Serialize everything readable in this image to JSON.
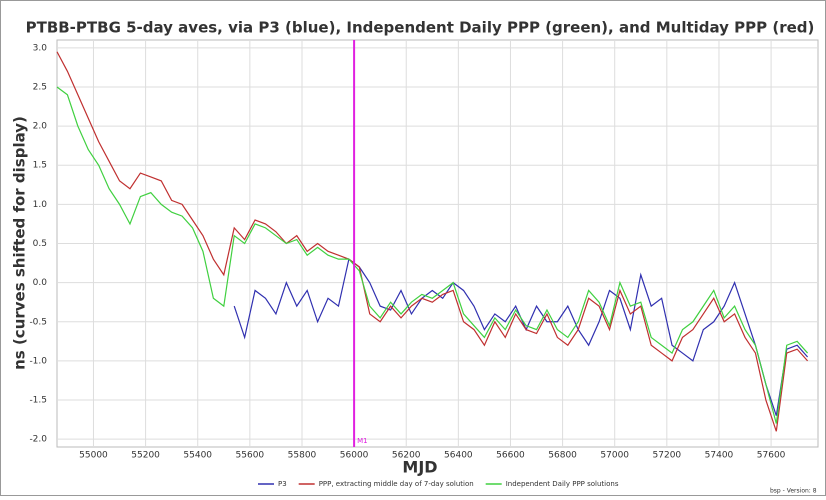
{
  "chart_data": {
    "type": "line",
    "title": "PTBB-PTBG 5-day aves, via P3 (blue), Independent Daily PPP (green), and Multiday PPP (red)",
    "x_label": "MJD",
    "y_label": "ns (curves shifted for display)",
    "footer": "bsp - Version: 8",
    "grid": true,
    "xlim": [
      54860,
      57780
    ],
    "ylim": [
      -2.1,
      3.1
    ],
    "xticks": [
      55000,
      55200,
      55400,
      55600,
      55800,
      56000,
      56200,
      56400,
      56600,
      56800,
      57000,
      57200,
      57400,
      57600
    ],
    "yticks": [
      {
        "value": 3,
        "label": "3.0"
      },
      2.5,
      {
        "value": 2,
        "label": "2.0"
      },
      1.5,
      {
        "value": 1,
        "label": "1.0"
      },
      0.5,
      {
        "value": 0,
        "label": "0.0"
      },
      -0.5,
      {
        "value": -1,
        "label": "-1.0"
      },
      -1.5,
      {
        "value": -2,
        "label": "-2.0"
      }
    ],
    "marker": {
      "x": 56000,
      "label": "M1",
      "color": "#e020e0"
    },
    "x": [
      54860,
      54900,
      54940,
      54980,
      55020,
      55060,
      55100,
      55140,
      55180,
      55220,
      55260,
      55300,
      55340,
      55380,
      55420,
      55460,
      55500,
      55540,
      55580,
      55620,
      55660,
      55700,
      55740,
      55780,
      55820,
      55860,
      55900,
      55940,
      55980,
      56020,
      56060,
      56100,
      56140,
      56180,
      56220,
      56260,
      56300,
      56340,
      56380,
      56420,
      56460,
      56500,
      56540,
      56580,
      56620,
      56660,
      56700,
      56740,
      56780,
      56820,
      56860,
      56900,
      56940,
      56980,
      57020,
      57060,
      57100,
      57140,
      57180,
      57220,
      57260,
      57300,
      57340,
      57380,
      57420,
      57460,
      57500,
      57540,
      57580,
      57620,
      57660,
      57700,
      57740
    ],
    "series": [
      {
        "name": "P3",
        "color": "#3030b0",
        "values": [
          null,
          null,
          null,
          null,
          null,
          null,
          null,
          null,
          null,
          null,
          null,
          null,
          null,
          null,
          null,
          null,
          null,
          -0.3,
          -0.7,
          -0.1,
          -0.2,
          -0.4,
          0.0,
          -0.3,
          -0.1,
          -0.5,
          -0.2,
          -0.3,
          0.3,
          0.2,
          0.0,
          -0.3,
          -0.35,
          -0.1,
          -0.4,
          -0.2,
          -0.1,
          -0.2,
          0.0,
          -0.1,
          -0.3,
          -0.6,
          -0.4,
          -0.5,
          -0.3,
          -0.6,
          -0.3,
          -0.5,
          -0.5,
          -0.3,
          -0.6,
          -0.8,
          -0.5,
          -0.1,
          -0.2,
          -0.6,
          0.1,
          -0.3,
          -0.2,
          -0.8,
          -0.9,
          -1.0,
          -0.6,
          -0.5,
          -0.3,
          0.0,
          -0.4,
          -0.8,
          -1.3,
          -1.7,
          -0.85,
          -0.8,
          -0.95
        ]
      },
      {
        "name": "PPP, extracting middle day of 7-day solution",
        "color": "#c03030",
        "values": [
          2.95,
          2.7,
          2.4,
          2.1,
          1.8,
          1.55,
          1.3,
          1.2,
          1.4,
          1.35,
          1.3,
          1.05,
          1.0,
          0.8,
          0.6,
          0.3,
          0.1,
          0.7,
          0.55,
          0.8,
          0.75,
          0.65,
          0.5,
          0.6,
          0.4,
          0.5,
          0.4,
          0.35,
          0.3,
          0.2,
          -0.4,
          -0.5,
          -0.3,
          -0.45,
          -0.3,
          -0.2,
          -0.25,
          -0.15,
          -0.1,
          -0.5,
          -0.6,
          -0.8,
          -0.5,
          -0.7,
          -0.4,
          -0.6,
          -0.65,
          -0.4,
          -0.7,
          -0.8,
          -0.6,
          -0.2,
          -0.3,
          -0.6,
          -0.1,
          -0.4,
          -0.3,
          -0.8,
          -0.9,
          -1.0,
          -0.7,
          -0.6,
          -0.4,
          -0.2,
          -0.5,
          -0.4,
          -0.7,
          -0.9,
          -1.5,
          -1.9,
          -0.9,
          -0.85,
          -1.0
        ]
      },
      {
        "name": "Independent Daily PPP solutions",
        "color": "#40d040",
        "values": [
          2.5,
          2.4,
          2.0,
          1.7,
          1.5,
          1.2,
          1.0,
          0.75,
          1.1,
          1.15,
          1.0,
          0.9,
          0.85,
          0.7,
          0.4,
          -0.2,
          -0.3,
          0.6,
          0.5,
          0.75,
          0.7,
          0.6,
          0.5,
          0.55,
          0.35,
          0.45,
          0.35,
          0.3,
          0.3,
          0.15,
          -0.3,
          -0.45,
          -0.25,
          -0.4,
          -0.25,
          -0.15,
          -0.2,
          -0.1,
          0.0,
          -0.4,
          -0.55,
          -0.7,
          -0.45,
          -0.6,
          -0.35,
          -0.55,
          -0.6,
          -0.35,
          -0.6,
          -0.7,
          -0.5,
          -0.1,
          -0.25,
          -0.55,
          0.0,
          -0.3,
          -0.25,
          -0.7,
          -0.8,
          -0.9,
          -0.6,
          -0.5,
          -0.3,
          -0.1,
          -0.45,
          -0.3,
          -0.6,
          -0.8,
          -1.3,
          -1.8,
          -0.8,
          -0.75,
          -0.9
        ]
      }
    ]
  }
}
